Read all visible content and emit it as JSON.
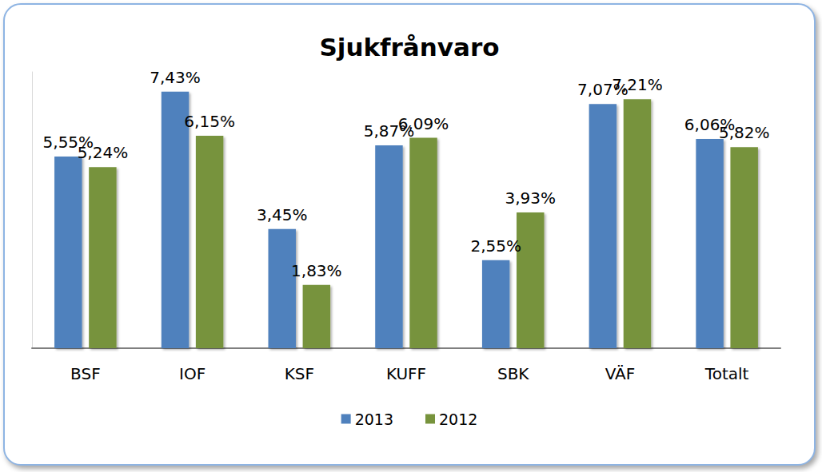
{
  "chart_data": {
    "type": "bar",
    "title": "Sjukfrånvaro",
    "categories": [
      "BSF",
      "IOF",
      "KSF",
      "KUFF",
      "SBK",
      "VÄF",
      "Totalt"
    ],
    "series": [
      {
        "name": "2013",
        "color": "#4f81bd",
        "values": [
          5.55,
          7.43,
          3.45,
          5.87,
          2.55,
          7.07,
          6.06
        ],
        "value_labels": [
          "5,55%",
          "7,43%",
          "3,45%",
          "5,87%",
          "2,55%",
          "7,07%",
          "6,06%"
        ]
      },
      {
        "name": "2012",
        "color": "#77933c",
        "values": [
          5.24,
          6.15,
          1.83,
          6.09,
          3.93,
          7.21,
          5.82
        ],
        "value_labels": [
          "5,24%",
          "6,15%",
          "1,83%",
          "6,09%",
          "3,93%",
          "7,21%",
          "5,82%"
        ]
      }
    ],
    "ylim": [
      0,
      8
    ],
    "grid": false,
    "legend": "bottom",
    "data_labels": true,
    "tick_labels": "x"
  }
}
